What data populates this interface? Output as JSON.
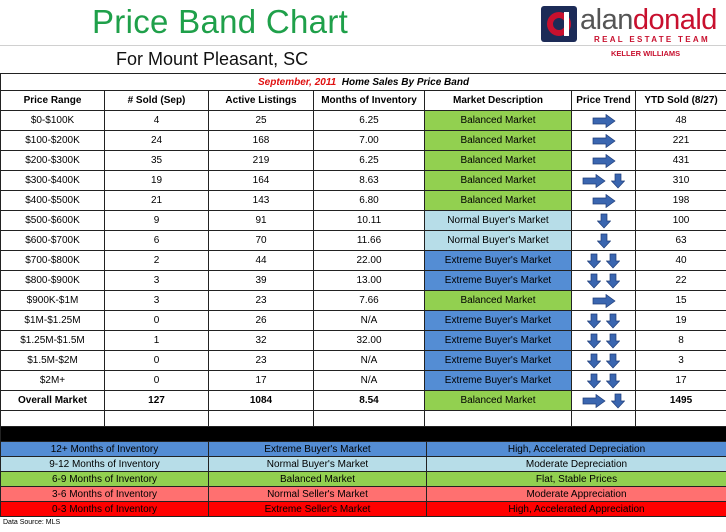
{
  "header": {
    "title": "Price Band Chart",
    "subtitle": "For Mount Pleasant, SC",
    "logo": {
      "name_part1": "alan",
      "name_part2": "donald",
      "tagline": "REAL ESTATE TEAM",
      "brokerage": "KELLER WILLIAMS",
      "colors": {
        "navy": "#1c2b57",
        "red": "#c8102e"
      }
    }
  },
  "table": {
    "caption_month": "September, 2011",
    "caption_text": "Home Sales By Price Band",
    "columns": [
      "Price Range",
      "# Sold (Sep)",
      "Active Listings",
      "Months of Inventory",
      "Market Description",
      "Price Trend",
      "YTD Sold (8/27)"
    ],
    "rows": [
      {
        "range": "$0-$100K",
        "sold": "4",
        "active": "25",
        "months": "6.25",
        "market": "Balanced Market",
        "market_type": "balanced",
        "trend": [
          "right"
        ],
        "ytd": "48"
      },
      {
        "range": "$100-$200K",
        "sold": "24",
        "active": "168",
        "months": "7.00",
        "market": "Balanced Market",
        "market_type": "balanced",
        "trend": [
          "right"
        ],
        "ytd": "221"
      },
      {
        "range": "$200-$300K",
        "sold": "35",
        "active": "219",
        "months": "6.25",
        "market": "Balanced Market",
        "market_type": "balanced",
        "trend": [
          "right"
        ],
        "ytd": "431"
      },
      {
        "range": "$300-$400K",
        "sold": "19",
        "active": "164",
        "months": "8.63",
        "market": "Balanced Market",
        "market_type": "balanced",
        "trend": [
          "right",
          "down"
        ],
        "ytd": "310"
      },
      {
        "range": "$400-$500K",
        "sold": "21",
        "active": "143",
        "months": "6.80",
        "market": "Balanced Market",
        "market_type": "balanced",
        "trend": [
          "right"
        ],
        "ytd": "198"
      },
      {
        "range": "$500-$600K",
        "sold": "9",
        "active": "91",
        "months": "10.11",
        "market": "Normal Buyer's Market",
        "market_type": "normal",
        "trend": [
          "down"
        ],
        "ytd": "100"
      },
      {
        "range": "$600-$700K",
        "sold": "6",
        "active": "70",
        "months": "11.66",
        "market": "Normal Buyer's Market",
        "market_type": "normal",
        "trend": [
          "down"
        ],
        "ytd": "63"
      },
      {
        "range": "$700-$800K",
        "sold": "2",
        "active": "44",
        "months": "22.00",
        "market": "Extreme Buyer's Market",
        "market_type": "extreme",
        "trend": [
          "down",
          "down"
        ],
        "ytd": "40"
      },
      {
        "range": "$800-$900K",
        "sold": "3",
        "active": "39",
        "months": "13.00",
        "market": "Extreme Buyer's Market",
        "market_type": "extreme",
        "trend": [
          "down",
          "down"
        ],
        "ytd": "22"
      },
      {
        "range": "$900K-$1M",
        "sold": "3",
        "active": "23",
        "months": "7.66",
        "market": "Balanced Market",
        "market_type": "balanced",
        "trend": [
          "right"
        ],
        "ytd": "15"
      },
      {
        "range": "$1M-$1.25M",
        "sold": "0",
        "active": "26",
        "months": "N/A",
        "market": "Extreme Buyer's Market",
        "market_type": "extreme",
        "trend": [
          "down",
          "down"
        ],
        "ytd": "19"
      },
      {
        "range": "$1.25M-$1.5M",
        "sold": "1",
        "active": "32",
        "months": "32.00",
        "market": "Extreme Buyer's Market",
        "market_type": "extreme",
        "trend": [
          "down",
          "down"
        ],
        "ytd": "8"
      },
      {
        "range": "$1.5M-$2M",
        "sold": "0",
        "active": "23",
        "months": "N/A",
        "market": "Extreme Buyer's Market",
        "market_type": "extreme",
        "trend": [
          "down",
          "down"
        ],
        "ytd": "3"
      },
      {
        "range": "$2M+",
        "sold": "0",
        "active": "17",
        "months": "N/A",
        "market": "Extreme Buyer's Market",
        "market_type": "extreme",
        "trend": [
          "down",
          "down"
        ],
        "ytd": "17"
      }
    ],
    "overall": {
      "range": "Overall Market",
      "sold": "127",
      "active": "1084",
      "months": "8.54",
      "market": "Balanced Market",
      "market_type": "balanced",
      "trend": [
        "right",
        "down"
      ],
      "ytd": "1495"
    }
  },
  "legend": {
    "title": "Market Description",
    "rows": [
      {
        "inventory": "12+ Months of Inventory",
        "market": "Extreme Buyer's Market",
        "effect": "High, Accelerated Depreciation",
        "color": "#548dd4"
      },
      {
        "inventory": "9-12 Months of Inventory",
        "market": "Normal Buyer's Market",
        "effect": "Moderate Depreciation",
        "color": "#b7dde8"
      },
      {
        "inventory": "6-9 Months of Inventory",
        "market": "Balanced Market",
        "effect": "Flat, Stable Prices",
        "color": "#92d050"
      },
      {
        "inventory": "3-6 Months of Inventory",
        "market": "Normal Seller's Market",
        "effect": "Moderate Appreciation",
        "color": "#ff7070"
      },
      {
        "inventory": "0-3 Months of Inventory",
        "market": "Extreme Seller's Market",
        "effect": "High, Accelerated Appreciation",
        "color": "#ff0000"
      }
    ]
  },
  "footer": {
    "source": "Data Source: MLS"
  },
  "colors": {
    "balanced": "#92d050",
    "normal_buyer": "#b7dde8",
    "extreme_buyer": "#548dd4",
    "normal_seller": "#ff7070",
    "extreme_seller": "#ff0000",
    "arrow": "#3a66b0",
    "title_green": "#1fa04a"
  }
}
